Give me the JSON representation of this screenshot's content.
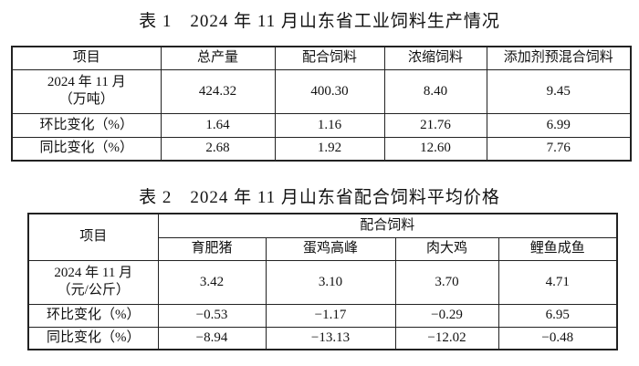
{
  "table1": {
    "title": "表 1　2024 年 11 月山东省工业饲料生产情况",
    "header": [
      "项目",
      "总产量",
      "配合饲料",
      "浓缩饲料",
      "添加剂预混合饲料"
    ],
    "rows": [
      [
        [
          "2024 年 11 月",
          "（万吨）"
        ],
        "424.32",
        "400.30",
        "8.40",
        "9.45"
      ],
      [
        [
          "环比变化（%）"
        ],
        "1.64",
        "1.16",
        "21.76",
        "6.99"
      ],
      [
        [
          "同比变化（%）"
        ],
        "2.68",
        "1.92",
        "12.60",
        "7.76"
      ]
    ]
  },
  "table2": {
    "title": "表 2　2024 年 11 月山东省配合饲料平均价格",
    "header": "项目",
    "group": "配合饲料",
    "subheader": [
      "育肥猪",
      "蛋鸡高峰",
      "肉大鸡",
      "鲤鱼成鱼"
    ],
    "rows": [
      [
        [
          "2024 年 11 月",
          "（元/公斤）"
        ],
        "3.42",
        "3.10",
        "3.70",
        "4.71"
      ],
      [
        [
          "环比变化（%）"
        ],
        "−0.53",
        "−1.17",
        "−0.29",
        "6.95"
      ],
      [
        [
          "同比变化（%）"
        ],
        "−8.94",
        "−13.13",
        "−12.02",
        "−0.48"
      ]
    ]
  }
}
